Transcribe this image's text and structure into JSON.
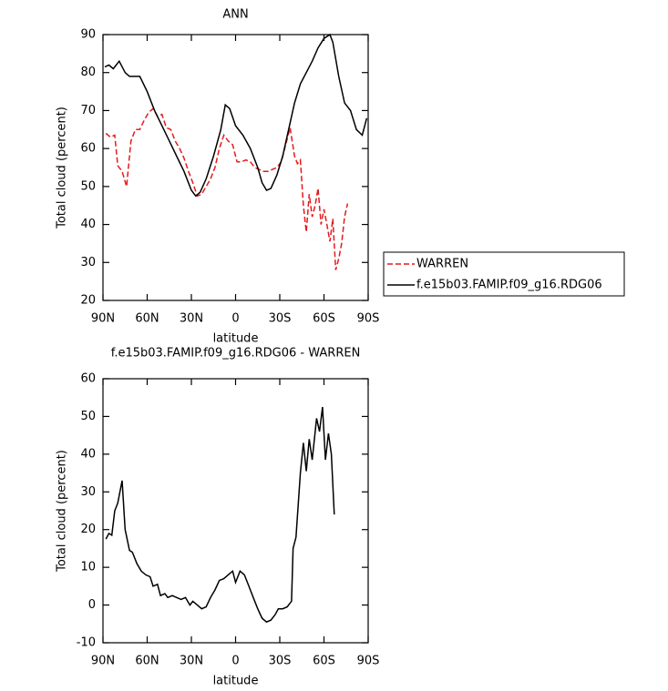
{
  "chart_data": [
    {
      "type": "line",
      "title": "ANN",
      "xlabel": "latitude",
      "ylabel": "Total cloud (percent)",
      "xlim": [
        90,
        -90
      ],
      "ylim": [
        20,
        90
      ],
      "xticks": [
        {
          "value": 90,
          "label": "90N"
        },
        {
          "value": 60,
          "label": "60N"
        },
        {
          "value": 30,
          "label": "30N"
        },
        0,
        {
          "value": -30,
          "label": "30S"
        },
        {
          "value": -60,
          "label": "60S"
        },
        {
          "value": -90,
          "label": "90S"
        }
      ],
      "yticks": [
        20,
        30,
        40,
        50,
        60,
        70,
        80,
        90
      ],
      "legend": "right",
      "series": [
        {
          "name": "WARREN",
          "color": "#e41a1c",
          "dashed": true,
          "x": [
            88,
            85,
            82,
            80,
            77,
            74,
            71,
            68,
            65,
            62,
            59,
            56,
            53,
            50,
            47,
            44,
            41,
            38,
            35,
            32,
            29,
            26,
            23,
            20,
            17,
            14,
            11,
            8,
            5,
            2,
            -1,
            -4,
            -7,
            -10,
            -13,
            -16,
            -19,
            -22,
            -25,
            -28,
            -31,
            -34,
            -37,
            -40,
            -42,
            -44,
            -46,
            -48,
            -50,
            -52,
            -54,
            -56,
            -58,
            -60,
            -62,
            -64,
            -66,
            -68,
            -70,
            -72,
            -74,
            -76
          ],
          "values": [
            64,
            63,
            63.5,
            55.5,
            54,
            50,
            62,
            65,
            65,
            67.5,
            69.5,
            70.5,
            68.5,
            69,
            65.5,
            65,
            62,
            60,
            57.5,
            54,
            51,
            47.5,
            48,
            50,
            52,
            55,
            60,
            63.5,
            62,
            61,
            56.5,
            56.5,
            57,
            56.5,
            55,
            54.5,
            54,
            54,
            54.5,
            55,
            56.5,
            61,
            65.5,
            58,
            56,
            57,
            45,
            38,
            48,
            42,
            45,
            49.5,
            40,
            44,
            40,
            35.5,
            41.5,
            28,
            31,
            35,
            42,
            45.5
          ]
        },
        {
          "name": "f.e15b03.FAMIP.f09_g16.RDG06",
          "color": "#000000",
          "dashed": false,
          "x": [
            88.75,
            86,
            83,
            79,
            75,
            72,
            69,
            65,
            60,
            55,
            50,
            45,
            40,
            35,
            30,
            27,
            24,
            20,
            15,
            10,
            7,
            4,
            0,
            -5,
            -10,
            -15,
            -18,
            -21,
            -24,
            -28,
            -32,
            -36,
            -40,
            -44,
            -48,
            -52,
            -56,
            -60,
            -64,
            -66,
            -70,
            -74,
            -78,
            -82,
            -86,
            -89
          ],
          "values": [
            81.5,
            82,
            81,
            83,
            80,
            79,
            79,
            79,
            75,
            70,
            66,
            62,
            58,
            54,
            49,
            47.5,
            48.5,
            52,
            58,
            65,
            71.5,
            70.5,
            66,
            63.5,
            60,
            55,
            51,
            49,
            49.5,
            53,
            58,
            65,
            72,
            77,
            80,
            83,
            86.5,
            89,
            90,
            88,
            79,
            72,
            70,
            65,
            63.5,
            68
          ]
        }
      ]
    },
    {
      "type": "line",
      "title": "f.e15b03.FAMIP.f09_g16.RDG06 - WARREN",
      "xlabel": "latitude",
      "ylabel": "Total cloud (percent)",
      "xlim": [
        90,
        -90
      ],
      "ylim": [
        -10,
        60
      ],
      "xticks": [
        {
          "value": 90,
          "label": "90N"
        },
        {
          "value": 60,
          "label": "60N"
        },
        {
          "value": 30,
          "label": "30N"
        },
        0,
        {
          "value": -30,
          "label": "30S"
        },
        {
          "value": -60,
          "label": "60S"
        },
        {
          "value": -90,
          "label": "90S"
        }
      ],
      "yticks": [
        -10,
        0,
        10,
        20,
        30,
        40,
        50,
        60
      ],
      "series": [
        {
          "color": "#000000",
          "dashed": false,
          "x": [
            88,
            86,
            84,
            82,
            80,
            77,
            75,
            72,
            70,
            67,
            64,
            61,
            58,
            56,
            53,
            51,
            48,
            46,
            43,
            40,
            37,
            34,
            31,
            29,
            26,
            23,
            20,
            17,
            14,
            11,
            8,
            5,
            2,
            0,
            -3,
            -6,
            -9,
            -12,
            -15,
            -18,
            -21,
            -24,
            -27,
            -29,
            -32,
            -35,
            -38,
            -39,
            -41,
            -44,
            -46,
            -48,
            -50,
            -52,
            -55,
            -57,
            -59,
            -61,
            -63,
            -65,
            -67
          ],
          "values": [
            17.5,
            19,
            18.5,
            25,
            27,
            33,
            20,
            14.5,
            14,
            11,
            9,
            8,
            7.5,
            5,
            5.5,
            2.5,
            3,
            2,
            2.5,
            2,
            1.5,
            2,
            0,
            1,
            0,
            -1,
            -0.5,
            2,
            4,
            6.5,
            7,
            8,
            9,
            6,
            9,
            8,
            5,
            2,
            -1,
            -3.5,
            -4.5,
            -4,
            -2.5,
            -1,
            -1,
            -0.5,
            1,
            15,
            18,
            35,
            43,
            35.5,
            44,
            38.5,
            49.5,
            46,
            52.5,
            38.5,
            45.5,
            40,
            24
          ]
        }
      ]
    }
  ]
}
